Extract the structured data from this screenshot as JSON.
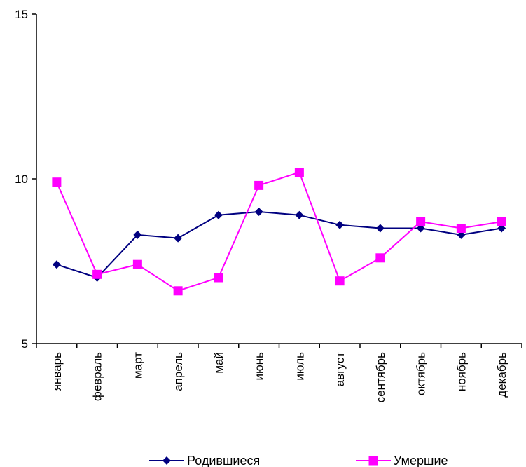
{
  "chart_data": {
    "type": "line",
    "categories": [
      "январь",
      "февраль",
      "март",
      "апрель",
      "май",
      "июнь",
      "июль",
      "август",
      "сентябрь",
      "октябрь",
      "ноябрь",
      "декабрь"
    ],
    "series": [
      {
        "name": "Родившиеся",
        "marker": "diamond",
        "color": "#000080",
        "values": [
          7.4,
          7.0,
          8.3,
          8.2,
          8.9,
          9.0,
          8.9,
          8.6,
          8.5,
          8.5,
          8.3,
          8.5
        ]
      },
      {
        "name": "Умершие",
        "marker": "square",
        "color": "#ff00ff",
        "values": [
          9.9,
          7.1,
          7.4,
          6.6,
          7.0,
          9.8,
          10.2,
          6.9,
          7.6,
          8.7,
          8.5,
          8.7
        ]
      }
    ],
    "ylim": [
      5,
      15
    ],
    "yticks": [
      "5",
      "10",
      "15"
    ],
    "grid": false,
    "legend": "bottom"
  }
}
